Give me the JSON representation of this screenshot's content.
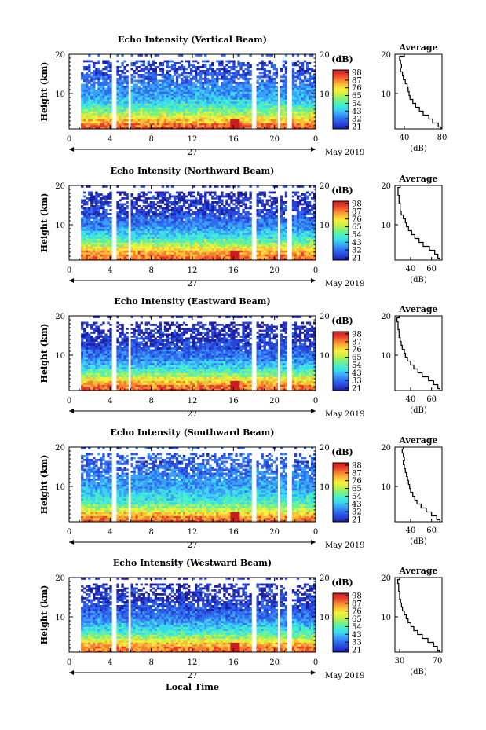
{
  "colors": {
    "colormap": [
      "#1e1ea0",
      "#2844d8",
      "#2f6cf0",
      "#3aa0f8",
      "#3ad8f0",
      "#48f0c8",
      "#7cf080",
      "#c8f048",
      "#f8f03c",
      "#f8c038",
      "#f88030",
      "#e83c2c",
      "#c81e1e"
    ]
  },
  "chart_data": [
    {
      "type": "heatmap",
      "title": "Echo Intensity (Vertical Beam)",
      "ylabel": "Height (km)",
      "ylim": [
        1,
        20
      ],
      "yticks": [
        "10",
        "20"
      ],
      "xlim": [
        0,
        24
      ],
      "xticks": [
        "0",
        "4",
        "8",
        "12",
        "16",
        "20",
        "0"
      ],
      "date_label": "27",
      "month_label": "May 2019",
      "colorbar": {
        "unit": "(dB)",
        "ticks": [
          "98",
          "87",
          "76",
          "65",
          "54",
          "43",
          "32",
          "21"
        ],
        "range": [
          21,
          98
        ]
      },
      "data_gaps_hours": [
        [
          4.2,
          4.6
        ],
        [
          5.7,
          6.1
        ],
        [
          17.7,
          18.2
        ],
        [
          20.2,
          20.5
        ],
        [
          21.3,
          21.6
        ]
      ],
      "average_profile": {
        "title": "Average",
        "xlabel": "(dB)",
        "xticks": [
          "40",
          "80"
        ],
        "xlim": [
          30,
          80
        ],
        "yticks": [
          "10",
          "20"
        ],
        "heights_km": [
          1,
          2,
          3,
          4,
          5,
          6,
          7,
          8,
          9,
          10,
          11,
          12,
          13,
          14,
          15,
          16,
          17,
          18,
          19,
          20
        ],
        "values_db": [
          79,
          76,
          70,
          66,
          60,
          56,
          52,
          49,
          46,
          45,
          44,
          43,
          41,
          39,
          38,
          36,
          37,
          36,
          35,
          40
        ]
      }
    },
    {
      "type": "heatmap",
      "title": "Echo Intensity (Northward Beam)",
      "ylabel": "Height (km)",
      "ylim": [
        1,
        20
      ],
      "yticks": [
        "10",
        "20"
      ],
      "xlim": [
        0,
        24
      ],
      "xticks": [
        "0",
        "4",
        "8",
        "12",
        "16",
        "20",
        "0"
      ],
      "date_label": "27",
      "month_label": "May 2019",
      "colorbar": {
        "unit": "(dB)",
        "ticks": [
          "98",
          "87",
          "76",
          "65",
          "54",
          "43",
          "32",
          "21"
        ],
        "range": [
          21,
          98
        ]
      },
      "data_gaps_hours": [
        [
          4.2,
          4.6
        ],
        [
          5.7,
          6.1
        ],
        [
          17.7,
          18.2
        ],
        [
          20.2,
          20.5
        ],
        [
          21.3,
          21.6
        ]
      ],
      "average_profile": {
        "title": "Average",
        "xlabel": "(dB)",
        "xticks": [
          "40",
          "60"
        ],
        "xlim": [
          25,
          70
        ],
        "yticks": [
          "10",
          "20"
        ],
        "heights_km": [
          1,
          2,
          3,
          4,
          5,
          6,
          7,
          8,
          9,
          10,
          11,
          12,
          13,
          14,
          15,
          16,
          17,
          18,
          19,
          20
        ],
        "values_db": [
          68,
          66,
          63,
          58,
          52,
          48,
          44,
          41,
          38,
          36,
          35,
          33,
          31,
          30,
          30,
          29,
          29,
          28,
          28,
          30
        ]
      }
    },
    {
      "type": "heatmap",
      "title": "Echo Intensity (Eastward Beam)",
      "ylabel": "Height (km)",
      "ylim": [
        1,
        20
      ],
      "yticks": [
        "10",
        "20"
      ],
      "xlim": [
        0,
        24
      ],
      "xticks": [
        "0",
        "4",
        "8",
        "12",
        "16",
        "20",
        "0"
      ],
      "date_label": "27",
      "month_label": "May 2019",
      "colorbar": {
        "unit": "(dB)",
        "ticks": [
          "98",
          "87",
          "76",
          "65",
          "54",
          "43",
          "33",
          "21"
        ],
        "range": [
          21,
          98
        ]
      },
      "data_gaps_hours": [
        [
          4.2,
          4.6
        ],
        [
          5.7,
          6.1
        ],
        [
          17.7,
          18.2
        ],
        [
          20.2,
          20.5
        ],
        [
          21.3,
          21.6
        ]
      ],
      "average_profile": {
        "title": "Average",
        "xlabel": "(dB)",
        "xticks": [
          "40",
          "60"
        ],
        "xlim": [
          25,
          70
        ],
        "yticks": [
          "10",
          "20"
        ],
        "heights_km": [
          1,
          2,
          3,
          4,
          5,
          6,
          7,
          8,
          9,
          10,
          11,
          12,
          13,
          14,
          15,
          16,
          17,
          18,
          19,
          20
        ],
        "values_db": [
          68,
          66,
          62,
          57,
          51,
          47,
          43,
          40,
          37,
          35,
          34,
          32,
          31,
          30,
          29,
          29,
          28,
          28,
          27,
          29
        ]
      }
    },
    {
      "type": "heatmap",
      "title": "Echo Intensity (Southward Beam)",
      "ylabel": "Height (km)",
      "ylim": [
        1,
        20
      ],
      "yticks": [
        "10",
        "20"
      ],
      "xlim": [
        0,
        24
      ],
      "xticks": [
        "0",
        "4",
        "8",
        "12",
        "16",
        "20",
        "0"
      ],
      "date_label": "27",
      "month_label": "May 2019",
      "colorbar": {
        "unit": "(dB)",
        "ticks": [
          "98",
          "87",
          "76",
          "65",
          "54",
          "43",
          "32",
          "21"
        ],
        "range": [
          21,
          98
        ]
      },
      "data_gaps_hours": [
        [
          4.2,
          4.6
        ],
        [
          5.7,
          6.1
        ],
        [
          17.7,
          18.2
        ],
        [
          20.2,
          20.5
        ],
        [
          21.3,
          21.6
        ]
      ],
      "average_profile": {
        "title": "Average",
        "xlabel": "(dB)",
        "xticks": [
          "40",
          "60"
        ],
        "xlim": [
          25,
          70
        ],
        "yticks": [
          "10",
          "20"
        ],
        "heights_km": [
          1,
          2,
          3,
          4,
          5,
          6,
          7,
          8,
          9,
          10,
          11,
          12,
          13,
          14,
          15,
          16,
          17,
          18,
          19,
          20
        ],
        "values_db": [
          68,
          65,
          60,
          55,
          50,
          46,
          44,
          42,
          40,
          39,
          38,
          37,
          36,
          35,
          34,
          33,
          34,
          33,
          32,
          33
        ]
      }
    },
    {
      "type": "heatmap",
      "title": "Echo Intensity (Westward Beam)",
      "ylabel": "Height (km)",
      "ylim": [
        1,
        20
      ],
      "yticks": [
        "10",
        "20"
      ],
      "xlim": [
        0,
        24
      ],
      "xticks": [
        "0",
        "4",
        "8",
        "12",
        "16",
        "20",
        "0"
      ],
      "date_label": "27",
      "month_label": "May 2019",
      "colorbar": {
        "unit": "(dB)",
        "ticks": [
          "98",
          "87",
          "76",
          "65",
          "54",
          "43",
          "33",
          "21"
        ],
        "range": [
          21,
          98
        ]
      },
      "data_gaps_hours": [
        [
          4.2,
          4.6
        ],
        [
          5.7,
          6.1
        ],
        [
          17.7,
          18.2
        ],
        [
          20.2,
          20.5
        ],
        [
          21.3,
          21.6
        ]
      ],
      "average_profile": {
        "title": "Average",
        "xlabel": "(dB)",
        "xticks": [
          "30",
          "70"
        ],
        "xlim": [
          25,
          75
        ],
        "yticks": [
          "10",
          "20"
        ],
        "heights_km": [
          1,
          2,
          3,
          4,
          5,
          6,
          7,
          8,
          9,
          10,
          11,
          12,
          13,
          14,
          15,
          16,
          17,
          18,
          19,
          20
        ],
        "values_db": [
          72,
          70,
          66,
          60,
          54,
          49,
          45,
          42,
          39,
          37,
          35,
          33,
          32,
          31,
          30,
          30,
          29,
          29,
          28,
          30
        ]
      }
    }
  ],
  "footer": {
    "xlabel": "Local Time"
  }
}
